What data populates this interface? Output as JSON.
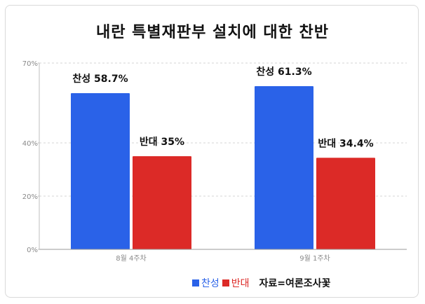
{
  "chart_data": {
    "type": "bar",
    "title": "내란 특별재판부 설치에 대한 찬반",
    "categories": [
      "8월 4주차",
      "9월 1주차"
    ],
    "series": [
      {
        "name": "찬성",
        "values": [
          58.7,
          61.3
        ],
        "labels": [
          "찬성 58.7%",
          "찬성 61.3%"
        ],
        "color": "#2a62e8"
      },
      {
        "name": "반대",
        "values": [
          35,
          34.4
        ],
        "labels": [
          "반대 35%",
          "반대 34.4%"
        ],
        "color": "#dc2a27"
      }
    ],
    "y_ticks": [
      0,
      20,
      40,
      70
    ],
    "y_tick_labels": [
      "0%",
      "20%",
      "40%",
      "70%"
    ],
    "ylim": [
      0,
      70
    ],
    "grid": true,
    "legend_position": "bottom-right"
  },
  "source": "자료=여론조사꽃"
}
